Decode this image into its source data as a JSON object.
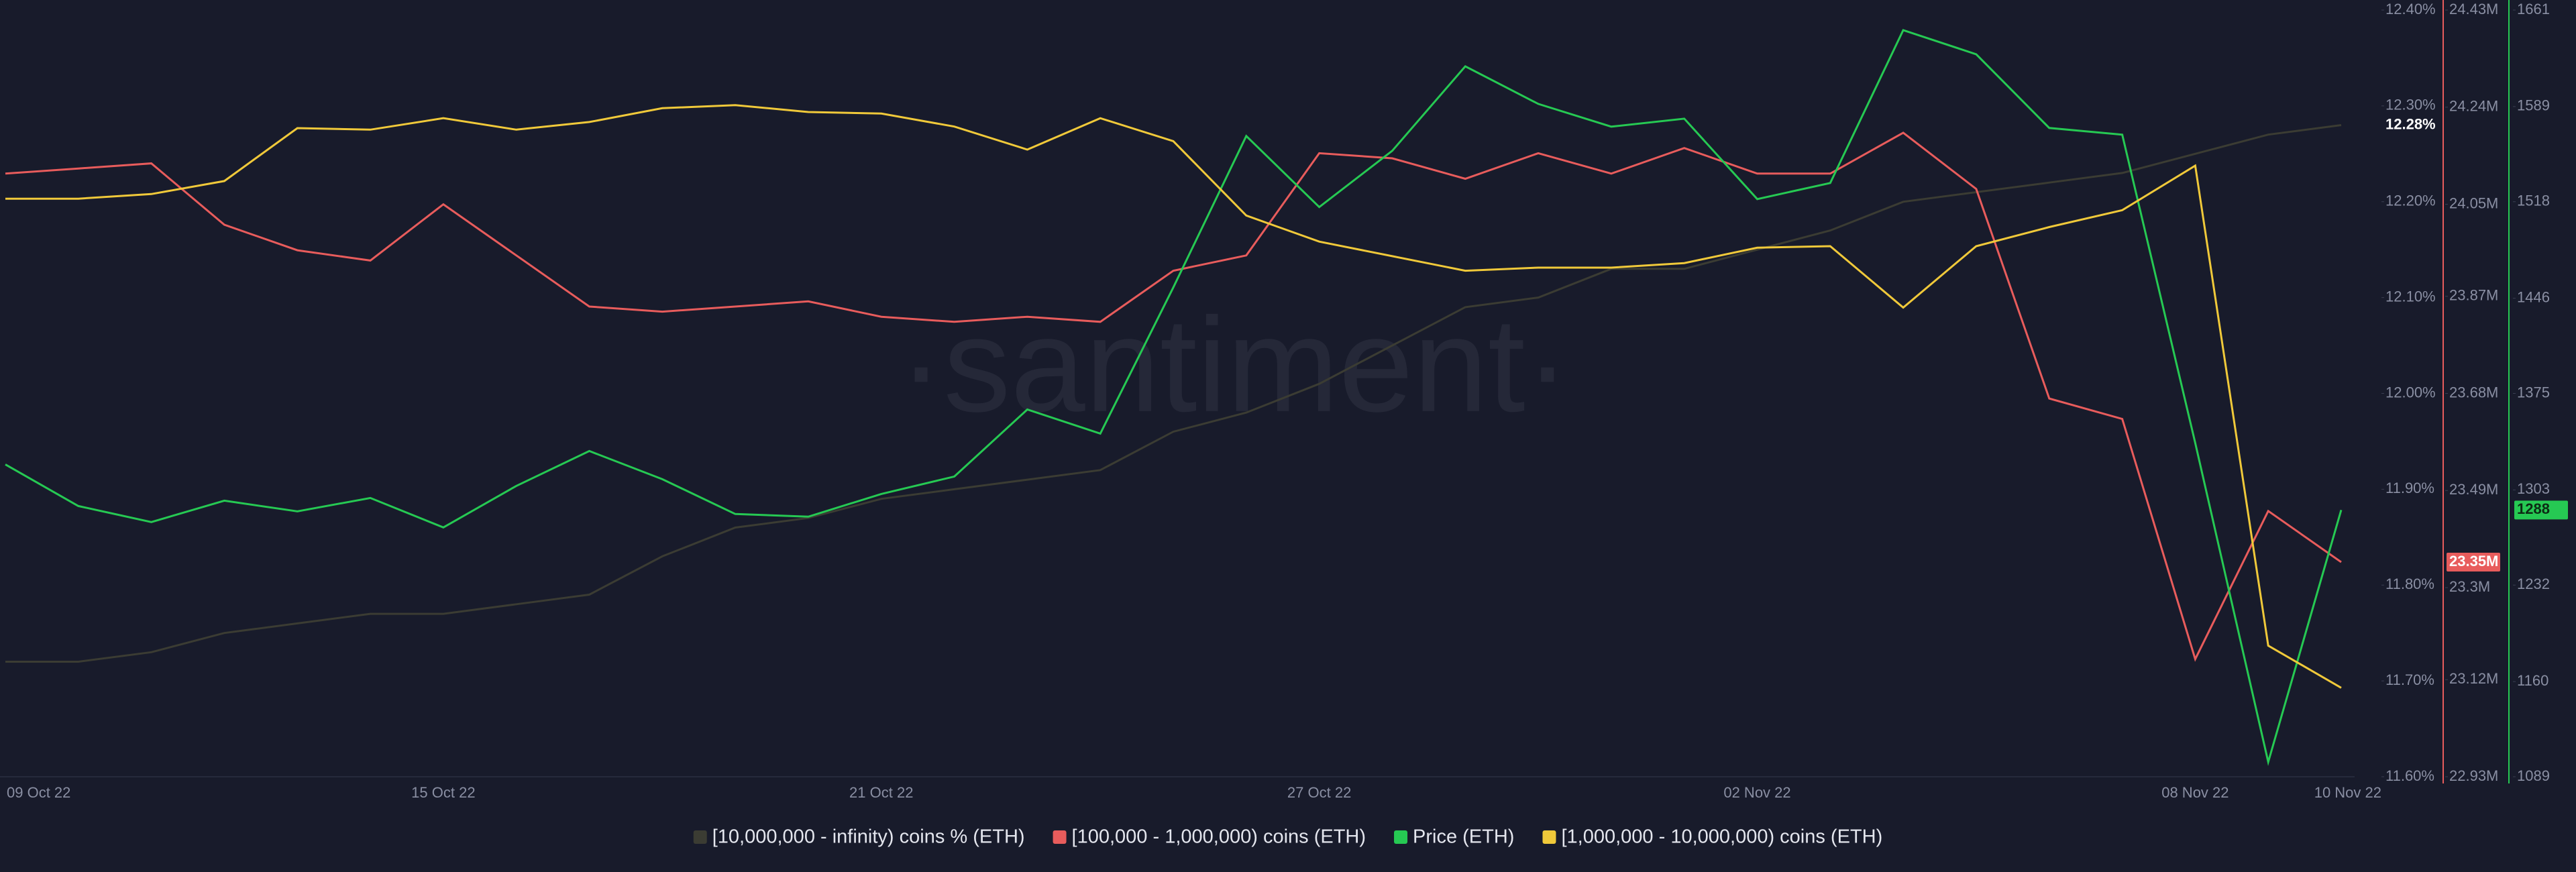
{
  "chart_data": {
    "type": "line",
    "watermark": "·santiment·",
    "categories": [
      "09 Oct 22",
      null,
      null,
      null,
      null,
      null,
      "15 Oct 22",
      null,
      null,
      null,
      null,
      null,
      "21 Oct 22",
      null,
      null,
      null,
      null,
      null,
      "27 Oct 22",
      null,
      null,
      null,
      null,
      null,
      "02 Nov 22",
      null,
      null,
      null,
      null,
      null,
      "08 Nov 22",
      null,
      "10 Nov 22"
    ],
    "ylim": [
      11.6,
      12.4
    ],
    "yticks": [
      {
        "value": 12.4,
        "label": "12.40%"
      },
      {
        "value": 12.3,
        "label": "12.30%"
      },
      {
        "value": 12.2,
        "label": "12.20%"
      },
      {
        "value": 12.1,
        "label": "12.10%"
      },
      {
        "value": 12.0,
        "label": "12.00%"
      },
      {
        "value": 11.9,
        "label": "11.90%"
      },
      {
        "value": 11.8,
        "label": "11.80%"
      },
      {
        "value": 11.7,
        "label": "11.70%"
      },
      {
        "value": 11.6,
        "label": "11.60%"
      }
    ],
    "y2lim": [
      22.93,
      24.43
    ],
    "y2ticks": [
      {
        "value": 24.43,
        "label": "24.43M"
      },
      {
        "value": 24.24,
        "label": "24.24M"
      },
      {
        "value": 24.05,
        "label": "24.05M"
      },
      {
        "value": 23.87,
        "label": "23.87M"
      },
      {
        "value": 23.68,
        "label": "23.68M"
      },
      {
        "value": 23.49,
        "label": "23.49M"
      },
      {
        "value": 23.3,
        "label": "23.3M"
      },
      {
        "value": 23.12,
        "label": "23.12M"
      },
      {
        "value": 22.93,
        "label": "22.93M"
      }
    ],
    "y3lim": [
      1089,
      1661
    ],
    "y3ticks": [
      1661,
      1589,
      1518,
      1446,
      1375,
      1303,
      1232,
      1160,
      1089
    ],
    "y4lim": [
      0,
      100
    ],
    "series": [
      {
        "name": "[10,000,000 - infinity) coins % (ETH)",
        "color": "#3b3c33",
        "axis": "y",
        "values": [
          11.72,
          11.72,
          11.73,
          11.75,
          11.76,
          11.77,
          11.77,
          11.78,
          11.79,
          11.83,
          11.86,
          11.87,
          11.89,
          11.9,
          11.91,
          11.92,
          11.96,
          11.98,
          12.01,
          12.05,
          12.09,
          12.1,
          12.13,
          12.13,
          12.15,
          12.17,
          12.2,
          12.21,
          12.22,
          12.23,
          12.25,
          12.27,
          12.28
        ],
        "last_label": {
          "value": 12.28,
          "label": "12.28%"
        }
      },
      {
        "name": "[100,000  - 1,000,000) coins (ETH)",
        "color": "#e85c5c",
        "axis": "y2",
        "values": [
          24.11,
          24.12,
          24.13,
          24.01,
          23.96,
          23.94,
          24.05,
          23.95,
          23.85,
          23.84,
          23.85,
          23.86,
          23.83,
          23.82,
          23.83,
          23.82,
          23.92,
          23.95,
          24.15,
          24.14,
          24.1,
          24.15,
          24.11,
          24.16,
          24.11,
          24.11,
          24.19,
          24.08,
          23.67,
          23.63,
          23.16,
          23.45,
          23.35
        ],
        "last_label": {
          "value": 23.35,
          "label": "23.35M"
        }
      },
      {
        "name": "Price (ETH)",
        "color": "#26c953",
        "axis": "y3",
        "values": [
          1322,
          1291,
          1279,
          1295,
          1287,
          1297,
          1275,
          1306,
          1332,
          1311,
          1285,
          1283,
          1300,
          1313,
          1363,
          1345,
          1454,
          1567,
          1514,
          1556,
          1619,
          1591,
          1574,
          1580,
          1520,
          1532,
          1646,
          1628,
          1573,
          1568,
          1338,
          1100,
          1288
        ],
        "last_label": {
          "value": 1288,
          "label": "1288"
        }
      },
      {
        "name": "[1,000,000 - 10,000,000) coins (ETH)",
        "color": "#f0c93a",
        "axis": "y4",
        "values": [
          75.4,
          75.4,
          76.0,
          77.7,
          84.6,
          84.4,
          85.9,
          84.4,
          85.4,
          87.2,
          87.6,
          86.7,
          86.5,
          84.8,
          81.8,
          85.9,
          82.9,
          73.2,
          69.8,
          67.9,
          66.0,
          66.4,
          66.4,
          67.0,
          69.0,
          69.2,
          61.2,
          69.2,
          71.7,
          73.9,
          79.7,
          17.1,
          11.6
        ]
      }
    ]
  }
}
